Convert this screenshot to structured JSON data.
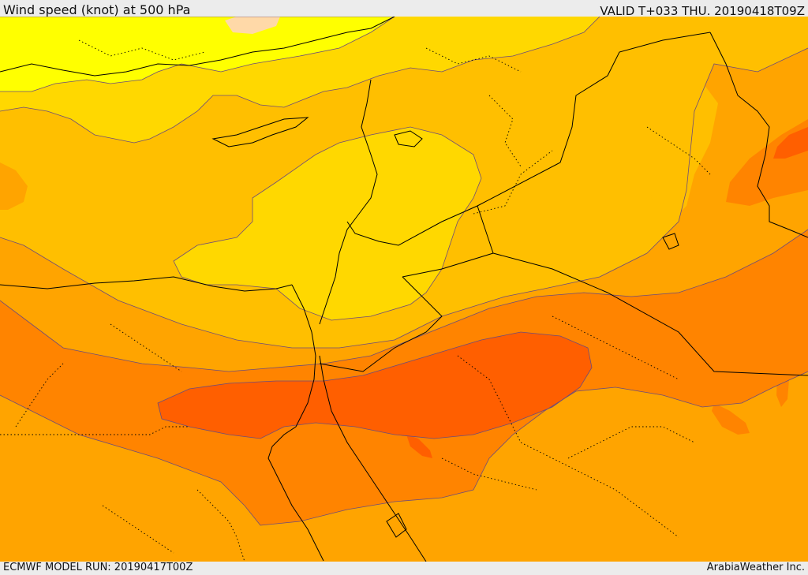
{
  "header": {
    "title": "Wind speed (knot) at 500 hPa",
    "valid": "VALID T+033 THU. 20190418T09Z"
  },
  "footer": {
    "model_run": "ECMWF MODEL RUN: 20190417T00Z",
    "credit": "ArabiaWeather Inc."
  },
  "map": {
    "colors": {
      "band_10_20": "#ffff00",
      "band_20_30": "#ffd800",
      "band_30_40": "#ffbf00",
      "band_40_50": "#ffa400",
      "band_50_60": "#ff8400",
      "band_60_70": "#ff5f00",
      "band_70_80": "#ff3d00",
      "calm_patch": "#ffd9a8",
      "contour_line": "#6d4c7a",
      "border_line": "#000000"
    }
  }
}
